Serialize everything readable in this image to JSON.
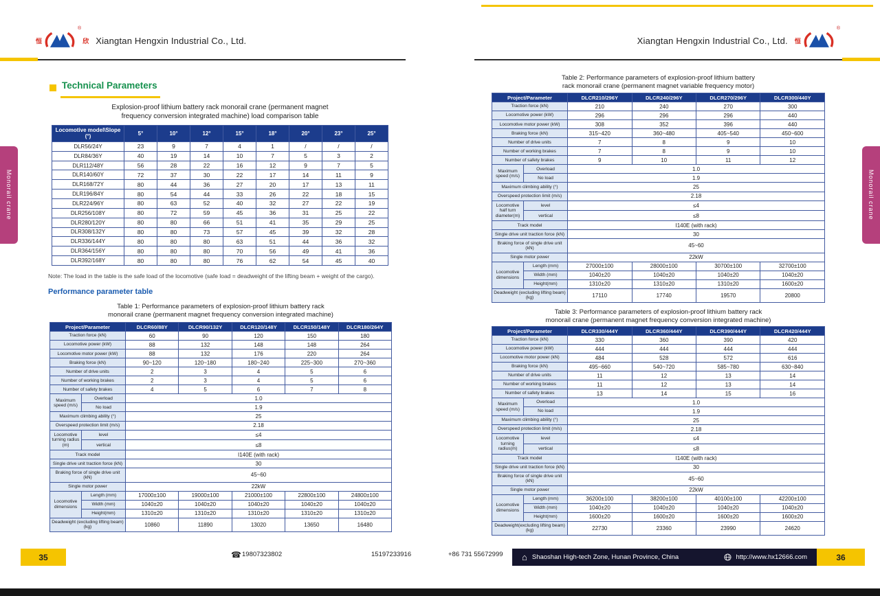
{
  "company": "Xiangtan Hengxin Industrial Co., Ltd.",
  "registered_mark": "®",
  "logo_char_left": "恒",
  "logo_char_right": "欣",
  "sidebar_label": "Monorail crane",
  "icons": {
    "phone": "☎",
    "home": "⌂"
  },
  "left_page": {
    "page_number": "35",
    "section_heading": "Technical Parameters",
    "load_title_1": "Explosion-proof lithium battery rack monorail crane (permanent magnet",
    "load_title_2": "frequency conversion integrated machine) load comparison table",
    "note": "Note: The load in the table is the safe load of the locomotive (safe load = deadweight of the lifting beam + weight of the cargo).",
    "perf_heading": "Performance parameter table",
    "load_table": {
      "header": [
        "Locomotive model\\Slope (°)",
        "5°",
        "10°",
        "12°",
        "15°",
        "18°",
        "20°",
        "23°",
        "25°"
      ],
      "rows": [
        [
          "DLR56/24Y",
          "23",
          "9",
          "7",
          "4",
          "1",
          "/",
          "/",
          "/"
        ],
        [
          "DLR84/36Y",
          "40",
          "19",
          "14",
          "10",
          "7",
          "5",
          "3",
          "2"
        ],
        [
          "DLR112/48Y",
          "56",
          "28",
          "22",
          "16",
          "12",
          "9",
          "7",
          "5"
        ],
        [
          "DLR140/60Y",
          "72",
          "37",
          "30",
          "22",
          "17",
          "14",
          "11",
          "9"
        ],
        [
          "DLR168/72Y",
          "80",
          "44",
          "36",
          "27",
          "20",
          "17",
          "13",
          "11"
        ],
        [
          "DLR196/84Y",
          "80",
          "54",
          "44",
          "33",
          "26",
          "22",
          "18",
          "15"
        ],
        [
          "DLR224/96Y",
          "80",
          "63",
          "52",
          "40",
          "32",
          "27",
          "22",
          "19"
        ],
        [
          "DLR256/108Y",
          "80",
          "72",
          "59",
          "45",
          "36",
          "31",
          "25",
          "22"
        ],
        [
          "DLR280/120Y",
          "80",
          "80",
          "66",
          "51",
          "41",
          "35",
          "29",
          "25"
        ],
        [
          "DLR308/132Y",
          "80",
          "80",
          "73",
          "57",
          "45",
          "39",
          "32",
          "28"
        ],
        [
          "DLR336/144Y",
          "80",
          "80",
          "80",
          "63",
          "51",
          "44",
          "36",
          "32"
        ],
        [
          "DLR364/156Y",
          "80",
          "80",
          "80",
          "70",
          "56",
          "49",
          "41",
          "36"
        ],
        [
          "DLR392/168Y",
          "80",
          "80",
          "80",
          "76",
          "62",
          "54",
          "45",
          "40"
        ]
      ]
    },
    "table1": {
      "title_1": "Table 1: Performance parameters of explosion-proof lithium battery rack",
      "title_2": "monorail crane (permanent magnet frequency conversion integrated machine)",
      "header": [
        "Project/Parameter",
        "DLCR60/88Y",
        "DLCR90/132Y",
        "DLCR120/148Y",
        "DLCR150/148Y",
        "DLCR180/264Y"
      ],
      "rows": [
        {
          "t": "d",
          "l": "Traction force (kN)",
          "v": [
            "60",
            "90",
            "120",
            "150",
            "180"
          ]
        },
        {
          "t": "d",
          "l": "Locomotive power (kW)",
          "v": [
            "88",
            "132",
            "148",
            "148",
            "264"
          ]
        },
        {
          "t": "d",
          "l": "Locomotive motor power (kW)",
          "v": [
            "88",
            "132",
            "176",
            "220",
            "264"
          ]
        },
        {
          "t": "d",
          "l": "Braking force (kN)",
          "v": [
            "90~120",
            "120~180",
            "180~240",
            "225~300",
            "270~360"
          ]
        },
        {
          "t": "d",
          "l": "Number of drive units",
          "v": [
            "2",
            "3",
            "4",
            "5",
            "6"
          ]
        },
        {
          "t": "d",
          "l": "Number of working brakes",
          "v": [
            "2",
            "3",
            "4",
            "5",
            "6"
          ]
        },
        {
          "t": "d",
          "l": "Number of safety brakes",
          "v": [
            "4",
            "5",
            "6",
            "7",
            "8"
          ]
        },
        {
          "t": "g",
          "l": "Maximum speed (m/s)",
          "subs": [
            {
              "l": "Overload",
              "v": "1.0"
            },
            {
              "l": "No load",
              "v": "1.9"
            }
          ]
        },
        {
          "t": "s",
          "l": "Maximum climbing ability (°)",
          "v": "25"
        },
        {
          "t": "s",
          "l": "Overspeed protection limit (m/s)",
          "v": "2.18"
        },
        {
          "t": "g",
          "l": "Locomotive turning radius (m)",
          "subs": [
            {
              "l": "level",
              "v": "≤4"
            },
            {
              "l": "vertical",
              "v": "≤8"
            }
          ]
        },
        {
          "t": "s",
          "l": "Track model",
          "v": "I140E (with rack)"
        },
        {
          "t": "s",
          "l": "Single drive unit traction force (kN)",
          "v": "30"
        },
        {
          "t": "s",
          "l": "Braking force of single drive unit (kN)",
          "v": "45~60"
        },
        {
          "t": "s",
          "l": "Single motor power",
          "v": "22kW"
        },
        {
          "t": "gv",
          "l": "Locomotive dimensions",
          "subs": [
            {
              "l": "Length (mm)",
              "v": [
                "17000±100",
                "19000±100",
                "21000±100",
                "22800±100",
                "24800±100"
              ]
            },
            {
              "l": "Width (mm)",
              "v": [
                "1040±20",
                "1040±20",
                "1040±20",
                "1040±20",
                "1040±20"
              ]
            },
            {
              "l": "Height(mm)",
              "v": [
                "1310±20",
                "1310±20",
                "1310±20",
                "1310±20",
                "1310±20"
              ]
            }
          ]
        },
        {
          "t": "d",
          "l": "Deadweight (excluding lifting beam) (kg)",
          "v": [
            "10860",
            "11890",
            "13020",
            "13650",
            "16480"
          ]
        }
      ]
    }
  },
  "right_page": {
    "page_number": "36",
    "table2": {
      "title_1": "Table 2: Performance parameters of explosion-proof lithium battery",
      "title_2": "rack monorail crane (permanent magnet variable frequency motor)",
      "header": [
        "Project/Parameter",
        "DLCR210/296Y",
        "DLCR240/296Y",
        "DLCR270/296Y",
        "DLCR300/440Y"
      ],
      "rows": [
        {
          "t": "d",
          "l": "Traction force (kN)",
          "v": [
            "210",
            "240",
            "270",
            "300"
          ]
        },
        {
          "t": "d",
          "l": "Locomotive power (kW)",
          "v": [
            "296",
            "296",
            "296",
            "440"
          ]
        },
        {
          "t": "d",
          "l": "Locomotive motor power (kW)",
          "v": [
            "308",
            "352",
            "396",
            "440"
          ]
        },
        {
          "t": "d",
          "l": "Braking force (kN)",
          "v": [
            "315~420",
            "360~480",
            "405~540",
            "450~600"
          ]
        },
        {
          "t": "d",
          "l": "Number of drive units",
          "v": [
            "7",
            "8",
            "9",
            "10"
          ]
        },
        {
          "t": "d",
          "l": "Number of working brakes",
          "v": [
            "7",
            "8",
            "9",
            "10"
          ]
        },
        {
          "t": "d",
          "l": "Number of safety brakes",
          "v": [
            "9",
            "10",
            "11",
            "12"
          ]
        },
        {
          "t": "g",
          "l": "Maximum speed (m/s)",
          "subs": [
            {
              "l": "Overload",
              "v": "1.0"
            },
            {
              "l": "No load",
              "v": "1.9"
            }
          ]
        },
        {
          "t": "s",
          "l": "Maximum climbing ability (°)",
          "v": "25"
        },
        {
          "t": "s",
          "l": "Overspeed protection limit (m/s)",
          "v": "2.18"
        },
        {
          "t": "g",
          "l": "Locomotive half turn diameter(m)",
          "subs": [
            {
              "l": "level",
              "v": "≤4"
            },
            {
              "l": "vertical",
              "v": "≤8"
            }
          ]
        },
        {
          "t": "s",
          "l": "Track model",
          "v": "I140E (with rack)"
        },
        {
          "t": "s",
          "l": "Single drive unit traction force (kN)",
          "v": "30"
        },
        {
          "t": "s",
          "l": "Braking force of single drive unit (kN)",
          "v": "45~60"
        },
        {
          "t": "s",
          "l": "Single motor power",
          "v": "22kW"
        },
        {
          "t": "gv",
          "l": "Locomotive dimensions",
          "subs": [
            {
              "l": "Length (mm)",
              "v": [
                "27000±100",
                "28000±100",
                "30700±100",
                "32700±100"
              ]
            },
            {
              "l": "Width (mm)",
              "v": [
                "1040±20",
                "1040±20",
                "1040±20",
                "1040±20"
              ]
            },
            {
              "l": "Height(mm)",
              "v": [
                "1310±20",
                "1310±20",
                "1310±20",
                "1600±20"
              ]
            }
          ]
        },
        {
          "t": "d",
          "l": "Deadweight (excluding lifting beam) (kg)",
          "v": [
            "17110",
            "17740",
            "19570",
            "20800"
          ]
        }
      ]
    },
    "table3": {
      "title_1": "Table 3: Performance parameters of explosion-proof lithium battery rack",
      "title_2": "monorail crane (permanent magnet frequency conversion integrated machine)",
      "header": [
        "Project/Parameter",
        "DLCR330/444Y",
        "DLCR360/444Y",
        "DLCR390/444Y",
        "DLCR420/444Y"
      ],
      "rows": [
        {
          "t": "d",
          "l": "Traction force (kN)",
          "v": [
            "330",
            "360",
            "390",
            "420"
          ]
        },
        {
          "t": "d",
          "l": "Locomotive power (kW)",
          "v": [
            "444",
            "444",
            "444",
            "444"
          ]
        },
        {
          "t": "d",
          "l": "Locomotive motor power (kN)",
          "v": [
            "484",
            "528",
            "572",
            "616"
          ]
        },
        {
          "t": "d",
          "l": "Braking force (kN)",
          "v": [
            "495~660",
            "540~720",
            "585~780",
            "630~840"
          ]
        },
        {
          "t": "d",
          "l": "Number of drive units",
          "v": [
            "11",
            "12",
            "13",
            "14"
          ]
        },
        {
          "t": "d",
          "l": "Number of working brakes",
          "v": [
            "11",
            "12",
            "13",
            "14"
          ]
        },
        {
          "t": "d",
          "l": "Number of safety brakes",
          "v": [
            "13",
            "14",
            "15",
            "16"
          ]
        },
        {
          "t": "g",
          "l": "Maximum speed (m/s)",
          "subs": [
            {
              "l": "Overload",
              "v": "1.0"
            },
            {
              "l": "No load",
              "v": "1.9"
            }
          ]
        },
        {
          "t": "s",
          "l": "Maximum climbing ability (°)",
          "v": "25"
        },
        {
          "t": "s",
          "l": "Overspeed protection limit (m/s)",
          "v": "2.18"
        },
        {
          "t": "g",
          "l": "Locomotive turning radius(m)",
          "subs": [
            {
              "l": "level",
              "v": "≤4"
            },
            {
              "l": "vertical",
              "v": "≤8"
            }
          ]
        },
        {
          "t": "s",
          "l": "Track model",
          "v": "I140E (with rack)"
        },
        {
          "t": "s",
          "l": "Single drive unit traction force (kN)",
          "v": "30"
        },
        {
          "t": "s",
          "l": "Braking force of single drive unit (kN)",
          "v": "45~60"
        },
        {
          "t": "s",
          "l": "Single motor power",
          "v": "22kW"
        },
        {
          "t": "gv",
          "l": "Locomotive dimensions",
          "subs": [
            {
              "l": "Length (mm)",
              "v": [
                "36200±100",
                "38200±100",
                "40100±100",
                "42200±100"
              ]
            },
            {
              "l": "Width (mm)",
              "v": [
                "1040±20",
                "1040±20",
                "1040±20",
                "1040±20"
              ]
            },
            {
              "l": "Height(mm)",
              "v": [
                "1600±20",
                "1600±20",
                "1600±20",
                "1600±20"
              ]
            }
          ]
        },
        {
          "t": "d",
          "l": "Deadweight(excluding lifting beam) (kg)",
          "v": [
            "22730",
            "23360",
            "23990",
            "24620"
          ]
        }
      ]
    }
  },
  "footer": {
    "phone_1": "19807323802",
    "phone_2": "15197233916",
    "phone_3": "+86 731 55672999",
    "address": "Shaoshan High-tech Zone, Hunan Province, China",
    "website": "http://www.hx12666.com"
  }
}
